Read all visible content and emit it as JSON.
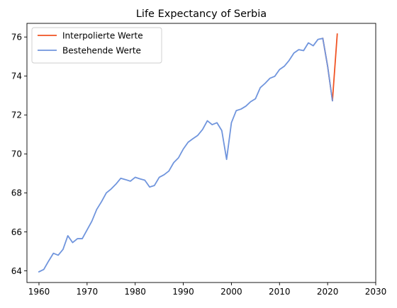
{
  "chart_data": {
    "type": "line",
    "title": "Life Expectancy of Serbia",
    "xlabel": "",
    "ylabel": "",
    "xlim": [
      1957.5,
      2030
    ],
    "ylim": [
      63.4,
      76.7
    ],
    "xticks": [
      1960,
      1970,
      1980,
      1990,
      2000,
      2010,
      2020,
      2030
    ],
    "yticks": [
      64,
      66,
      68,
      70,
      72,
      74,
      76
    ],
    "grid": false,
    "legend_position": "top-left",
    "series": [
      {
        "name": "Interpolierte Werte",
        "color": "#f05323",
        "x": [
          2019,
          2020,
          2021,
          2022
        ],
        "y": [
          75.93,
          74.5,
          72.73,
          76.15
        ]
      },
      {
        "name": "Bestehende Werte",
        "color": "#7095dd",
        "x": [
          1960,
          1961,
          1962,
          1963,
          1964,
          1965,
          1966,
          1967,
          1968,
          1969,
          1970,
          1971,
          1972,
          1973,
          1974,
          1975,
          1976,
          1977,
          1978,
          1979,
          1980,
          1981,
          1982,
          1983,
          1984,
          1985,
          1986,
          1987,
          1988,
          1989,
          1990,
          1991,
          1992,
          1993,
          1994,
          1995,
          1996,
          1997,
          1998,
          1999,
          2000,
          2001,
          2002,
          2003,
          2004,
          2005,
          2006,
          2007,
          2008,
          2009,
          2010,
          2011,
          2012,
          2013,
          2014,
          2015,
          2016,
          2017,
          2018,
          2019,
          2020,
          2021
        ],
        "y": [
          63.95,
          64.07,
          64.5,
          64.9,
          64.8,
          65.1,
          65.8,
          65.45,
          65.65,
          65.65,
          66.1,
          66.55,
          67.15,
          67.55,
          68.0,
          68.2,
          68.45,
          68.75,
          68.68,
          68.6,
          68.8,
          68.72,
          68.65,
          68.3,
          68.38,
          68.8,
          68.93,
          69.12,
          69.55,
          69.8,
          70.25,
          70.6,
          70.78,
          70.95,
          71.25,
          71.7,
          71.5,
          71.6,
          71.2,
          69.72,
          71.6,
          72.22,
          72.3,
          72.45,
          72.68,
          72.83,
          73.4,
          73.62,
          73.88,
          73.98,
          74.33,
          74.5,
          74.8,
          75.18,
          75.35,
          75.3,
          75.7,
          75.55,
          75.88,
          75.93,
          74.5,
          72.73
        ]
      }
    ]
  }
}
